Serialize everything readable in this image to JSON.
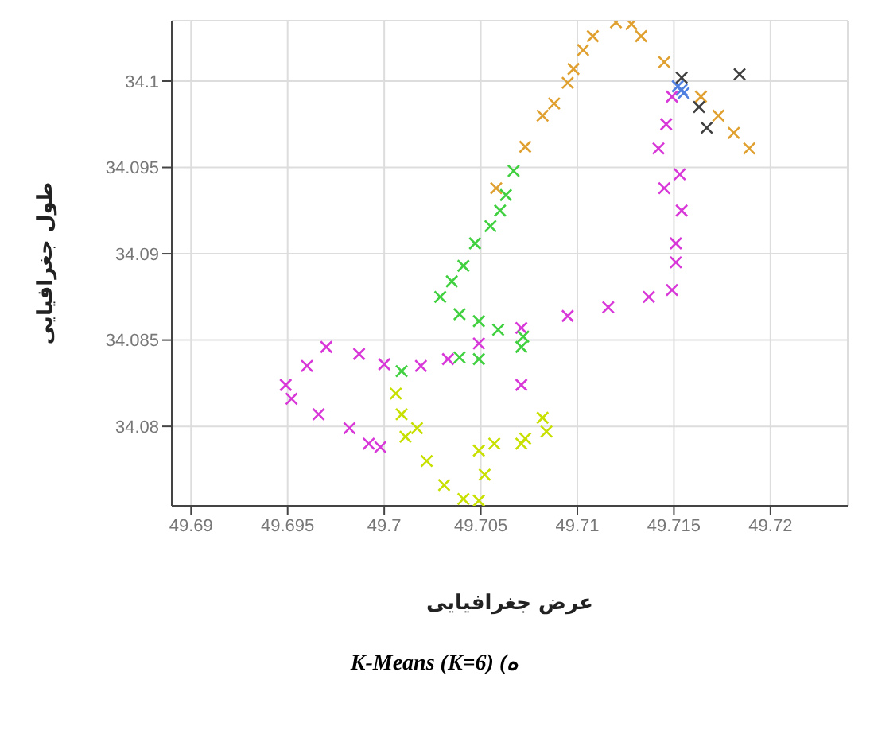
{
  "chart_data": {
    "type": "scatter",
    "title": "ه) K-Means (K=6)",
    "xlabel": "عرض جغرافیایی",
    "ylabel": "طول جغرافیایی",
    "xlim": [
      49.689,
      49.724
    ],
    "ylim": [
      34.0754,
      34.1035
    ],
    "xticks": [
      49.69,
      49.695,
      49.7,
      49.705,
      49.71,
      49.715,
      49.72
    ],
    "yticks": [
      34.08,
      34.085,
      34.09,
      34.095,
      34.1
    ],
    "grid": true,
    "marker": "cross",
    "legend": false,
    "series": [
      {
        "color": "#e0a030",
        "x": [
          49.7058,
          49.7073,
          49.7082,
          49.7088,
          49.7095,
          49.7098,
          49.7103,
          49.7108,
          49.712,
          49.7128,
          49.7133,
          49.7145,
          49.7164,
          49.7173,
          49.7181,
          49.7189
        ],
        "values": [
          34.0938,
          34.0962,
          34.098,
          34.0987,
          34.0999,
          34.1007,
          34.1018,
          34.1026,
          34.1034,
          34.1033,
          34.1026,
          34.1011,
          34.0991,
          34.098,
          34.097,
          34.0961
        ]
      },
      {
        "color": "#5080e0",
        "x": [
          49.7152,
          49.7155,
          49.7154
        ],
        "values": [
          34.0997,
          34.0993,
          34.0995
        ]
      },
      {
        "color": "#404040",
        "x": [
          49.7154,
          49.7163,
          49.7167,
          49.7184
        ],
        "values": [
          34.1002,
          34.0985,
          34.0973,
          34.1004
        ]
      },
      {
        "color": "#d838d8",
        "x": [
          49.7149,
          49.7146,
          49.7142,
          49.7153,
          49.7145,
          49.7154,
          49.7151,
          49.7151,
          49.7149,
          49.7137,
          49.7116,
          49.7095,
          49.7071,
          49.7049,
          49.7033,
          49.7019,
          49.7071,
          49.7,
          49.6987,
          49.697,
          49.696,
          49.6949,
          49.6952,
          49.6966,
          49.6982,
          49.6992,
          49.6998
        ],
        "values": [
          34.0991,
          34.0975,
          34.0961,
          34.0946,
          34.0938,
          34.0925,
          34.0906,
          34.0895,
          34.0879,
          34.0875,
          34.0869,
          34.0864,
          34.0857,
          34.0848,
          34.0839,
          34.0835,
          34.0824,
          34.0836,
          34.0842,
          34.0846,
          34.0835,
          34.0824,
          34.0816,
          34.0807,
          34.0799,
          34.079,
          34.0788
        ]
      },
      {
        "color": "#40d040",
        "x": [
          49.7067,
          49.7063,
          49.706,
          49.7055,
          49.7047,
          49.7041,
          49.7035,
          49.7029,
          49.7039,
          49.7049,
          49.7059,
          49.7072,
          49.7071,
          49.7049,
          49.7039,
          49.7009
        ],
        "values": [
          34.0948,
          34.0934,
          34.0925,
          34.0916,
          34.0906,
          34.0893,
          34.0884,
          34.0875,
          34.0865,
          34.0861,
          34.0856,
          34.0852,
          34.0846,
          34.0839,
          34.084,
          34.0832
        ]
      },
      {
        "color": "#c8e000",
        "x": [
          49.7006,
          49.7009,
          49.7011,
          49.7017,
          49.7022,
          49.7031,
          49.7041,
          49.7049,
          49.7052,
          49.7049,
          49.7057,
          49.7073,
          49.7084,
          49.7082,
          49.7071
        ],
        "values": [
          34.0819,
          34.0807,
          34.0794,
          34.0799,
          34.078,
          34.0766,
          34.0758,
          34.0757,
          34.0772,
          34.0786,
          34.079,
          34.0793,
          34.0797,
          34.0805,
          34.079
        ]
      }
    ]
  }
}
